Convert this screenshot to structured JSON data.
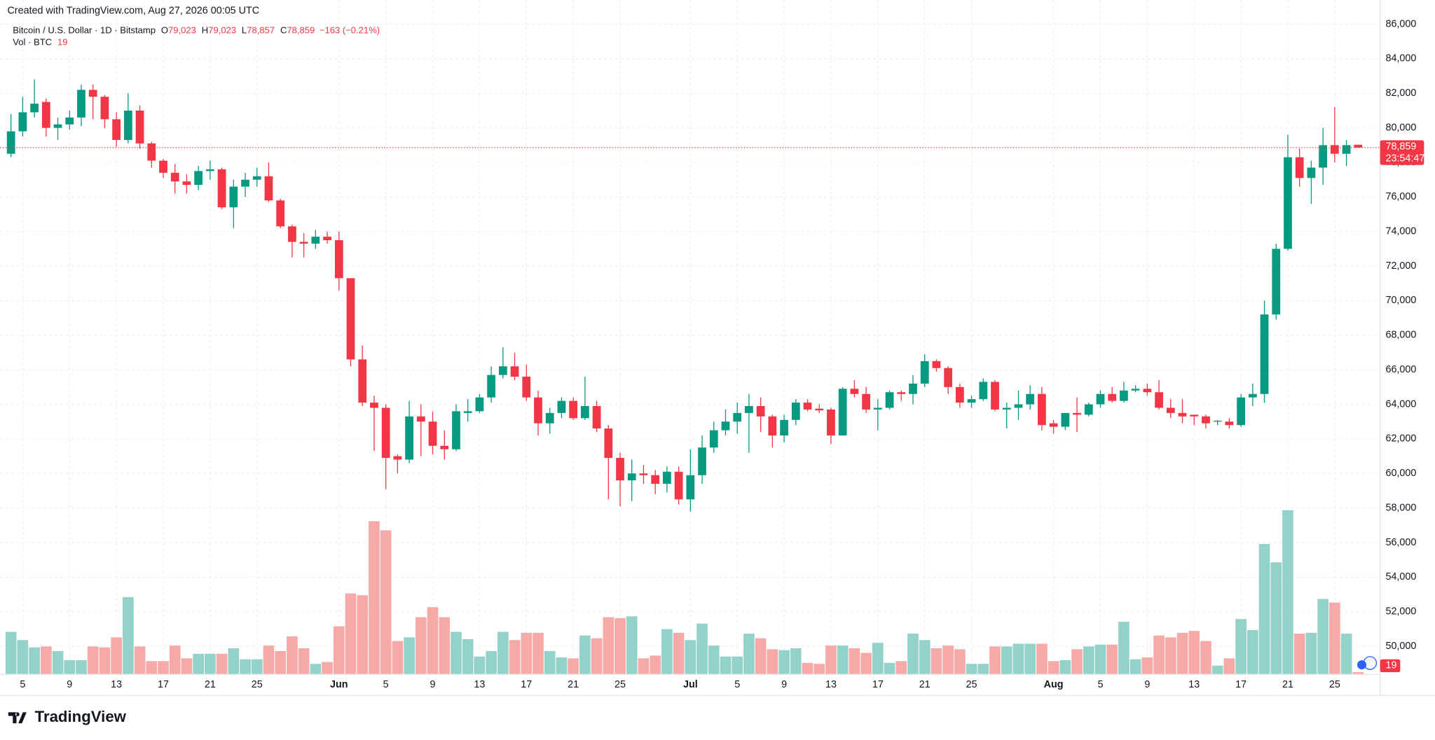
{
  "header": {
    "created": "Created with TradingView.com, Aug 27, 2026 00:05 UTC",
    "brand": "TradingView"
  },
  "chart_data": {
    "type": "candlestick",
    "symbol": "Bitcoin / U.S. Dollar · 1D · Bitstamp",
    "ohlc": [
      {
        "label": "O",
        "value": "79,023"
      },
      {
        "label": "H",
        "value": "79,023"
      },
      {
        "label": "L",
        "value": "78,857"
      },
      {
        "label": "C",
        "value": "78,859"
      }
    ],
    "change": "−163 (−0.21%)",
    "volume_title": "Vol · BTC",
    "last_price_label": "78,859",
    "countdown": "23:54:47",
    "up_color": "#089981",
    "down_color": "#f23645",
    "volume_up_color": "#92d2c8",
    "volume_down_color": "#f7a9a7",
    "grid": true,
    "ylim": [
      48400,
      87400
    ],
    "yticks": [
      {
        "value": 50000,
        "label": "50,000"
      },
      {
        "value": 52000,
        "label": "52,000"
      },
      {
        "value": 54000,
        "label": "54,000"
      },
      {
        "value": 56000,
        "label": "56,000"
      },
      {
        "value": 58000,
        "label": "58,000"
      },
      {
        "value": 60000,
        "label": "60,000"
      },
      {
        "value": 62000,
        "label": "62,000"
      },
      {
        "value": 64000,
        "label": "64,000"
      },
      {
        "value": 66000,
        "label": "66,000"
      },
      {
        "value": 68000,
        "label": "68,000"
      },
      {
        "value": 70000,
        "label": "70,000"
      },
      {
        "value": 72000,
        "label": "72,000"
      },
      {
        "value": 74000,
        "label": "74,000"
      },
      {
        "value": 76000,
        "label": "76,000"
      },
      {
        "value": 78000,
        "label": "78,000"
      },
      {
        "value": 80000,
        "label": "80,000"
      },
      {
        "value": 82000,
        "label": "82,000"
      },
      {
        "value": 84000,
        "label": "84,000"
      },
      {
        "value": 86000,
        "label": "86,000"
      }
    ],
    "vlim": [
      0,
      2000
    ],
    "categories": [
      null,
      "5",
      null,
      null,
      null,
      "9",
      null,
      null,
      null,
      "13",
      null,
      null,
      null,
      "17",
      null,
      null,
      null,
      "21",
      null,
      null,
      null,
      "25",
      null,
      null,
      null,
      null,
      null,
      null,
      "Jun",
      null,
      null,
      null,
      "5",
      null,
      null,
      null,
      "9",
      null,
      null,
      null,
      "13",
      null,
      null,
      null,
      "17",
      null,
      null,
      null,
      "21",
      null,
      null,
      null,
      "25",
      null,
      null,
      null,
      null,
      null,
      "Jul",
      null,
      null,
      null,
      "5",
      null,
      null,
      null,
      "9",
      null,
      null,
      null,
      "13",
      null,
      null,
      null,
      "17",
      null,
      null,
      null,
      "21",
      null,
      null,
      null,
      "25",
      null,
      null,
      null,
      null,
      null,
      null,
      "Aug",
      null,
      null,
      null,
      "5",
      null,
      null,
      null,
      "9",
      null,
      null,
      null,
      "13",
      null,
      null,
      null,
      "17",
      null,
      null,
      null,
      "21",
      null,
      null,
      null,
      "25",
      null,
      null
    ],
    "open": [
      78500,
      79800,
      80900,
      81500,
      80000,
      80200,
      80600,
      82200,
      81800,
      80500,
      79300,
      81000,
      79100,
      78100,
      77400,
      76900,
      76700,
      77500,
      77600,
      75400,
      76600,
      77000,
      77200,
      75800,
      74300,
      73400,
      73300,
      73700,
      73500,
      71300,
      66600,
      64100,
      63800,
      61000,
      60800,
      63300,
      63000,
      61600,
      61400,
      63500,
      63600,
      64400,
      65700,
      66200,
      65600,
      64400,
      62900,
      63500,
      64200,
      63200,
      63900,
      62600,
      60900,
      59600,
      60000,
      59900,
      59400,
      60100,
      58500,
      59900,
      61500,
      62500,
      63000,
      63500,
      63900,
      63300,
      62200,
      63100,
      64100,
      63750,
      63700,
      62200,
      64900,
      64600,
      63700,
      63800,
      64700,
      64600,
      65200,
      66500,
      66100,
      65000,
      64100,
      64300,
      65300,
      63700,
      63800,
      64000,
      64600,
      62900,
      62700,
      63500,
      63400,
      64000,
      64600,
      64200,
      64800,
      64900,
      64700,
      63800,
      63500,
      63400,
      63300,
      63000,
      63000,
      62800,
      64400,
      64600,
      69200,
      73000,
      78300,
      77100,
      77700,
      79000,
      78500,
      79023
    ],
    "high": [
      80800,
      81800,
      82800,
      81700,
      80600,
      81000,
      82500,
      82500,
      81900,
      80900,
      82000,
      81300,
      79200,
      78200,
      77900,
      77300,
      77800,
      78100,
      77700,
      77000,
      77400,
      77700,
      78000,
      75900,
      74400,
      73900,
      74100,
      74000,
      74000,
      71300,
      67400,
      64500,
      64000,
      61100,
      64200,
      64000,
      63600,
      62500,
      64000,
      64300,
      64600,
      66200,
      67300,
      67000,
      66300,
      64800,
      63800,
      64400,
      64400,
      65600,
      64200,
      62800,
      61200,
      60800,
      60500,
      60200,
      60400,
      60400,
      61400,
      62200,
      63000,
      63700,
      64100,
      64600,
      64400,
      63400,
      63400,
      64300,
      64300,
      64000,
      63800,
      65000,
      65400,
      65000,
      64300,
      64800,
      64800,
      65700,
      66900,
      66600,
      66200,
      65200,
      64500,
      65500,
      65400,
      64100,
      64800,
      65100,
      65000,
      63100,
      63500,
      64400,
      64100,
      64800,
      65000,
      65300,
      65100,
      65200,
      65400,
      64300,
      64300,
      63400,
      63400,
      63100,
      63200,
      64600,
      65200,
      70000,
      73300,
      79600,
      78800,
      78100,
      80000,
      81200,
      79300,
      79023
    ],
    "low": [
      78300,
      79500,
      80600,
      79500,
      79300,
      79900,
      80100,
      80500,
      80000,
      78900,
      79100,
      78800,
      77700,
      77100,
      76200,
      76200,
      76400,
      77000,
      75300,
      74200,
      76000,
      76600,
      75700,
      74200,
      72500,
      72500,
      73000,
      73300,
      70600,
      66200,
      63900,
      61300,
      59100,
      60000,
      60600,
      61000,
      61100,
      60800,
      61300,
      63000,
      63500,
      64100,
      65500,
      65400,
      64200,
      62200,
      62300,
      63200,
      63100,
      63100,
      62400,
      58500,
      58100,
      58400,
      59400,
      58800,
      58900,
      58200,
      57800,
      59400,
      61200,
      62200,
      62300,
      61200,
      62400,
      61500,
      61800,
      62800,
      63600,
      63500,
      61700,
      62200,
      64400,
      63500,
      62500,
      63700,
      64200,
      64000,
      65000,
      65900,
      64600,
      63800,
      63800,
      64200,
      63600,
      62600,
      63100,
      63700,
      62500,
      62300,
      62500,
      62400,
      63300,
      63800,
      64100,
      64100,
      64700,
      64500,
      63700,
      63200,
      62900,
      62800,
      62600,
      62800,
      62600,
      62700,
      63900,
      64100,
      68900,
      72900,
      76600,
      75600,
      76700,
      78000,
      77800,
      78857
    ],
    "close": [
      79800,
      80900,
      81400,
      80000,
      80200,
      80600,
      82200,
      81800,
      80500,
      79300,
      81000,
      79100,
      78100,
      77400,
      76900,
      76700,
      77500,
      77600,
      75400,
      76600,
      77000,
      77200,
      75800,
      74300,
      73400,
      73300,
      73700,
      73500,
      71300,
      66600,
      64100,
      63800,
      60900,
      60800,
      63300,
      63000,
      61600,
      61400,
      63600,
      63600,
      64400,
      65700,
      66200,
      65600,
      64400,
      62900,
      63500,
      64200,
      63200,
      63900,
      62600,
      60900,
      59600,
      60000,
      59900,
      59400,
      60100,
      58500,
      59900,
      61500,
      62500,
      63000,
      63500,
      63900,
      63300,
      62200,
      63100,
      64100,
      63700,
      63650,
      62200,
      64900,
      64600,
      63700,
      63800,
      64700,
      64600,
      65200,
      66500,
      66100,
      65000,
      64100,
      64300,
      65300,
      63700,
      63800,
      64000,
      64600,
      62800,
      62700,
      63500,
      63400,
      64000,
      64600,
      64200,
      64800,
      64900,
      64700,
      63800,
      63500,
      63300,
      63300,
      62900,
      63050,
      62800,
      64400,
      64600,
      69200,
      73000,
      78300,
      77100,
      77700,
      79000,
      78500,
      79000,
      78859
    ],
    "volume": [
      460,
      370,
      290,
      300,
      250,
      150,
      150,
      300,
      290,
      400,
      840,
      300,
      140,
      140,
      310,
      170,
      220,
      220,
      220,
      280,
      160,
      160,
      310,
      250,
      410,
      280,
      110,
      130,
      520,
      880,
      860,
      1670,
      1570,
      360,
      400,
      620,
      730,
      620,
      460,
      380,
      190,
      250,
      460,
      370,
      450,
      450,
      250,
      180,
      170,
      420,
      390,
      620,
      610,
      630,
      170,
      200,
      490,
      450,
      370,
      550,
      310,
      190,
      190,
      440,
      390,
      270,
      260,
      280,
      120,
      110,
      310,
      310,
      280,
      230,
      340,
      120,
      140,
      440,
      370,
      280,
      310,
      270,
      110,
      110,
      300,
      300,
      330,
      330,
      330,
      140,
      150,
      270,
      300,
      320,
      320,
      570,
      160,
      180,
      420,
      400,
      450,
      470,
      360,
      90,
      170,
      600,
      480,
      1420,
      1220,
      1790,
      440,
      450,
      820,
      780,
      440,
      19
    ]
  }
}
